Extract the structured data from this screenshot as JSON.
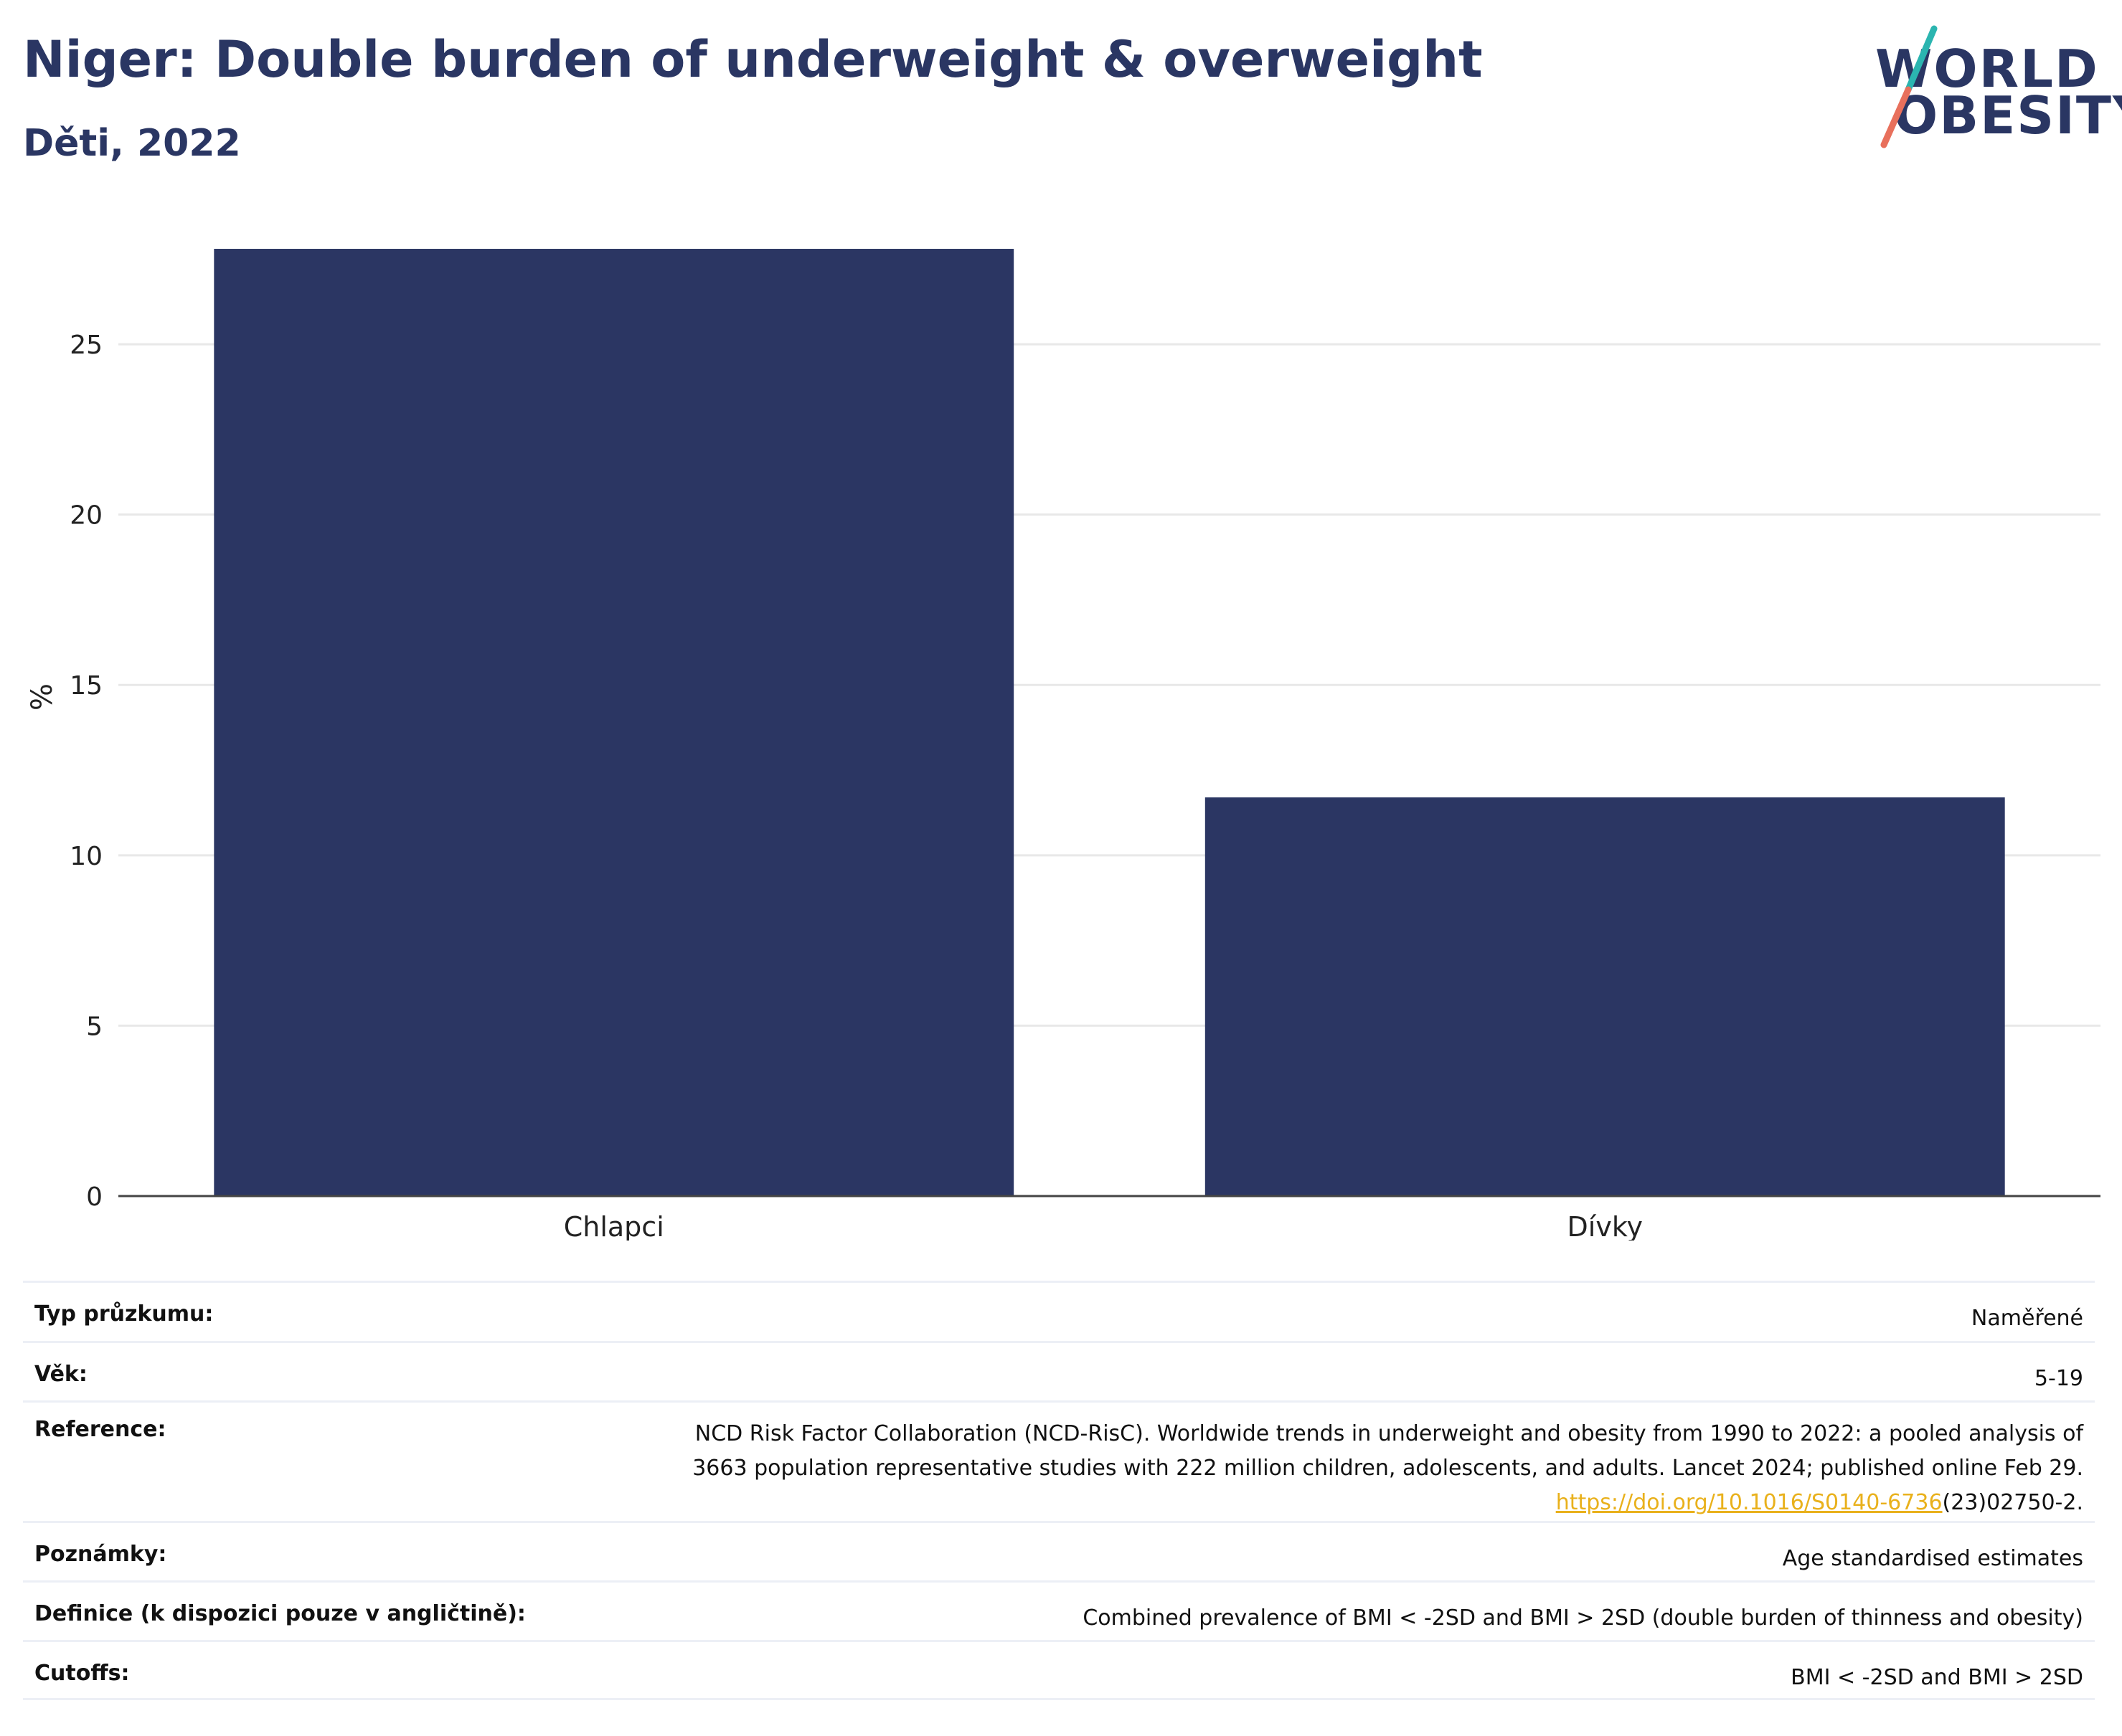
{
  "title": "Niger: Double burden of underweight & overweight",
  "subtitle": "Děti, 2022",
  "logo": {
    "line1": "WORLD",
    "line2": "OBESITY"
  },
  "colors": {
    "bar": "#2b3663",
    "grid": "#e8e8e8",
    "accent_teal": "#2bb5b0",
    "accent_coral": "#e8705c",
    "link": "#e9b11c"
  },
  "chart_data": {
    "type": "bar",
    "categories": [
      "Chlapci",
      "Dívky"
    ],
    "values": [
      27.8,
      11.7
    ],
    "ylabel": "%",
    "xlabel": "",
    "ylim": [
      0,
      29
    ],
    "yticks": [
      0,
      5,
      10,
      15,
      20,
      25
    ],
    "grid": true
  },
  "info": {
    "survey_type": {
      "label": "Typ průzkumu:",
      "value": "Naměřené"
    },
    "age": {
      "label": "Věk:",
      "value": "5-19"
    },
    "reference": {
      "label": "Reference:",
      "line1": "NCD Risk Factor Collaboration (NCD-RisC). Worldwide trends in underweight and obesity from 1990 to 2022: a pooled analysis of",
      "line2": "3663 population representative studies with 222 million children, adolescents, and adults. Lancet 2024; published online Feb 29.",
      "link": "https://doi.org/10.1016/S0140-6736",
      "suffix": "(23)02750-2."
    },
    "notes": {
      "label": "Poznámky:",
      "value": "Age standardised estimates"
    },
    "definition": {
      "label": "Definice (k dispozici pouze v angličtině):",
      "value": "Combined prevalence of BMI < -2SD and BMI > 2SD (double burden of thinness and obesity)"
    },
    "cutoffs": {
      "label": "Cutoffs:",
      "value": "BMI < -2SD and BMI > 2SD"
    }
  }
}
